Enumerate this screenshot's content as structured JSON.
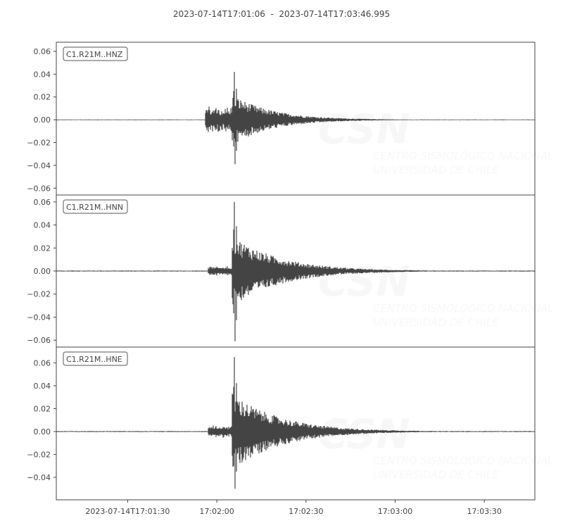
{
  "chart_data": [
    {
      "type": "line",
      "title": "2023-07-14T17:01:06  -  2023-07-14T17:03:46.995",
      "x_start": "2023-07-14T17:01:06",
      "x_end": "2023-07-14T17:03:46.995",
      "x_tick_labels": [
        "2023-07-14T17:01:30",
        "17:02:00",
        "17:02:30",
        "17:03:00",
        "17:03:30"
      ],
      "x_tick_seconds_after_start": [
        24,
        54,
        84,
        114,
        144
      ],
      "line_color": "#444444",
      "grid": false,
      "watermark": {
        "logo": "CSN",
        "lines": [
          "CENTRO SISMOLÓGICO NACIONAL",
          "UNIVERSIDAD DE CHILE"
        ]
      },
      "panels": [
        {
          "label": "C1.R21M..HNZ",
          "ylim": [
            -0.066,
            0.068
          ],
          "y_ticks": [
            0.06,
            0.04,
            0.02,
            0.0,
            -0.02,
            -0.04,
            -0.06
          ],
          "y_tick_labels": [
            "0.06",
            "0.04",
            "0.02",
            "0.00",
            "−0.02",
            "−0.04",
            "−0.06"
          ],
          "p_onset": "17:01:56",
          "p_amplitude": 0.011,
          "peak_time": "17:02:06",
          "max": 0.042,
          "min": -0.039,
          "coda_end": "17:03:00",
          "noise": 0.0003
        },
        {
          "label": "C1.R21M..HNN",
          "ylim": [
            -0.066,
            0.066
          ],
          "y_ticks": [
            0.06,
            0.04,
            0.02,
            0.0,
            -0.02,
            -0.04,
            -0.06
          ],
          "y_tick_labels": [
            "0.06",
            "0.04",
            "0.02",
            "0.00",
            "−0.02",
            "−0.04",
            "−0.06"
          ],
          "p_onset": "17:01:57",
          "p_amplitude": 0.004,
          "peak_time": "17:02:06",
          "max": 0.06,
          "min": -0.061,
          "coda_end": "17:03:10",
          "noise": 0.0004
        },
        {
          "label": "C1.R21M..HNE",
          "ylim": [
            -0.0597,
            0.0738
          ],
          "y_ticks": [
            0.06,
            0.04,
            0.02,
            0.0,
            -0.02,
            -0.04
          ],
          "y_tick_labels": [
            "0.06",
            "0.04",
            "0.02",
            "0.00",
            "−0.02",
            "−0.04"
          ],
          "p_onset": "17:01:57",
          "p_amplitude": 0.005,
          "peak_time": "17:02:06",
          "max": 0.065,
          "min": -0.05,
          "coda_end": "17:03:10",
          "noise": 0.0004
        }
      ]
    }
  ]
}
